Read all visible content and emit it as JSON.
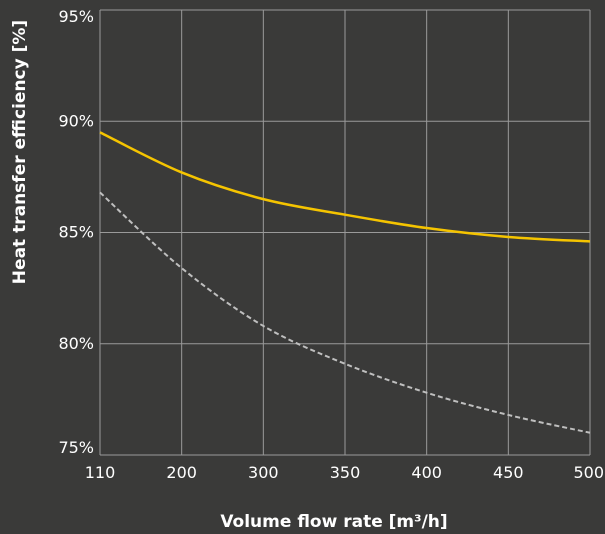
{
  "chart_data": {
    "type": "line",
    "title": "",
    "xlabel": "Volume flow rate [m³/h]",
    "ylabel": "Heat transfer efficiency [%]",
    "x": [
      110,
      200,
      300,
      350,
      400,
      450,
      500
    ],
    "x_tick_labels": [
      "110",
      "200",
      "300",
      "350",
      "400",
      "450",
      "500"
    ],
    "y_ticks": [
      75,
      80,
      85,
      90,
      95
    ],
    "y_tick_labels": [
      "75%",
      "80%",
      "85%",
      "90%",
      "95%"
    ],
    "ylim": [
      75,
      95
    ],
    "grid": true,
    "series": [
      {
        "values": [
          89.5,
          87.7,
          86.5,
          85.8,
          85.2,
          84.8,
          84.6
        ],
        "color": "#f5c400",
        "style": "solid"
      },
      {
        "values": [
          86.8,
          83.4,
          80.8,
          79.1,
          77.8,
          76.8,
          76.0
        ],
        "color": "#bfbfbf",
        "style": "dashed"
      }
    ],
    "colors": {
      "background": "#3a3a39",
      "grid": "#9a9a9a",
      "text": "#ffffff"
    }
  }
}
